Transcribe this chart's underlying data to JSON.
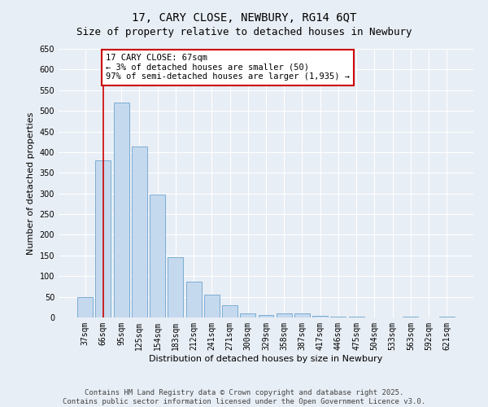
{
  "title1": "17, CARY CLOSE, NEWBURY, RG14 6QT",
  "title2": "Size of property relative to detached houses in Newbury",
  "xlabel": "Distribution of detached houses by size in Newbury",
  "ylabel": "Number of detached properties",
  "categories": [
    "37sqm",
    "66sqm",
    "95sqm",
    "125sqm",
    "154sqm",
    "183sqm",
    "212sqm",
    "241sqm",
    "271sqm",
    "300sqm",
    "329sqm",
    "358sqm",
    "387sqm",
    "417sqm",
    "446sqm",
    "475sqm",
    "504sqm",
    "533sqm",
    "563sqm",
    "592sqm",
    "621sqm"
  ],
  "values": [
    50,
    380,
    520,
    413,
    297,
    145,
    87,
    55,
    30,
    9,
    6,
    10,
    10,
    4,
    2,
    2,
    0,
    0,
    1,
    0,
    1
  ],
  "bar_color": "#c5d9ee",
  "bar_edge_color": "#7aadd4",
  "vline_x_idx": 1,
  "vline_color": "#cc0000",
  "annotation_text": "17 CARY CLOSE: 67sqm\n← 3% of detached houses are smaller (50)\n97% of semi-detached houses are larger (1,935) →",
  "annotation_box_facecolor": "#ffffff",
  "annotation_box_edgecolor": "#cc0000",
  "ylim": [
    0,
    650
  ],
  "yticks": [
    0,
    50,
    100,
    150,
    200,
    250,
    300,
    350,
    400,
    450,
    500,
    550,
    600,
    650
  ],
  "footer1": "Contains HM Land Registry data © Crown copyright and database right 2025.",
  "footer2": "Contains public sector information licensed under the Open Government Licence v3.0.",
  "bg_color": "#e8eef5",
  "plot_bg_color": "#e8eef5",
  "grid_color": "#ffffff",
  "title1_fontsize": 10,
  "title2_fontsize": 9,
  "axis_label_fontsize": 8,
  "tick_fontsize": 7,
  "annotation_fontsize": 7.5,
  "footer_fontsize": 6.5
}
